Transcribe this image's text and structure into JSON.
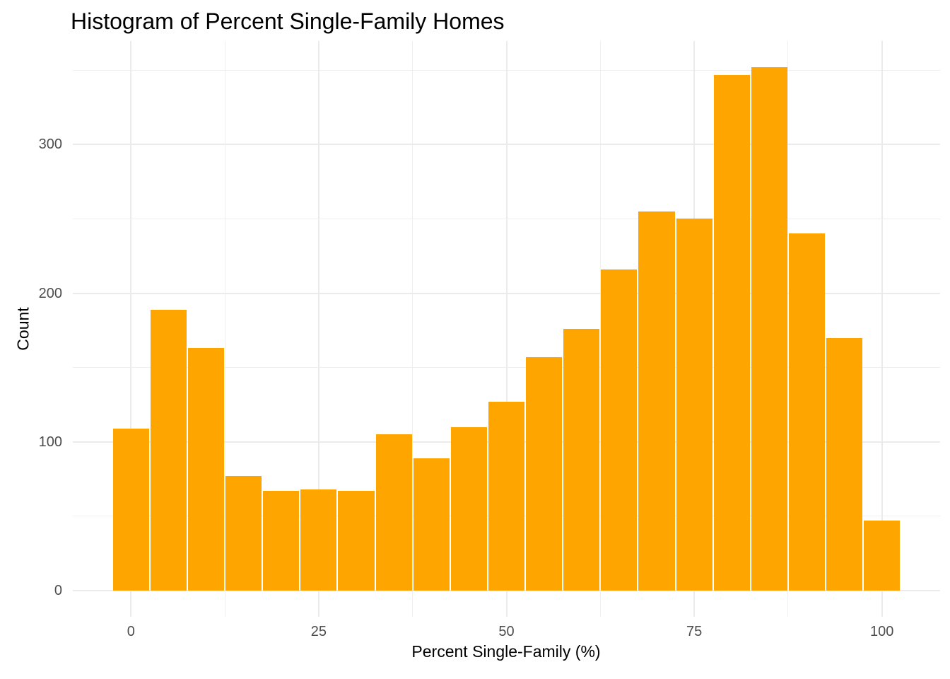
{
  "chart_data": {
    "type": "bar",
    "subtype": "histogram",
    "title": "Histogram of Percent Single-Family Homes",
    "xlabel": "Percent Single-Family (%)",
    "ylabel": "Count",
    "bin_start": -2.5,
    "bin_width": 5,
    "bin_edges": [
      -2.5,
      2.5,
      7.5,
      12.5,
      17.5,
      22.5,
      27.5,
      32.5,
      37.5,
      42.5,
      47.5,
      52.5,
      57.5,
      62.5,
      67.5,
      72.5,
      77.5,
      82.5,
      87.5,
      92.5,
      97.5,
      102.5
    ],
    "counts": [
      109,
      189,
      163,
      77,
      67,
      68,
      67,
      105,
      89,
      110,
      127,
      157,
      176,
      216,
      255,
      250,
      347,
      352,
      240,
      170,
      47
    ],
    "x_ticks": [
      0,
      25,
      50,
      75,
      100
    ],
    "x_minor_ticks": [
      12.5,
      37.5,
      62.5,
      87.5
    ],
    "y_ticks": [
      0,
      100,
      200,
      300
    ],
    "y_minor_ticks": [
      50,
      150,
      250,
      350
    ],
    "xlim": [
      -7.75,
      107.75
    ],
    "ylim": [
      -17.6,
      369.6
    ],
    "grid": true,
    "legend_position": "none",
    "colors": {
      "bar_fill": "#FFA500",
      "bar_border": "#FFFFFF",
      "grid_major": "#EBEBEB",
      "grid_minor": "#EFEFEF",
      "tick_label": "#4D4D4D",
      "title": "#000000",
      "axis_title": "#000000",
      "background": "#FFFFFF"
    }
  }
}
